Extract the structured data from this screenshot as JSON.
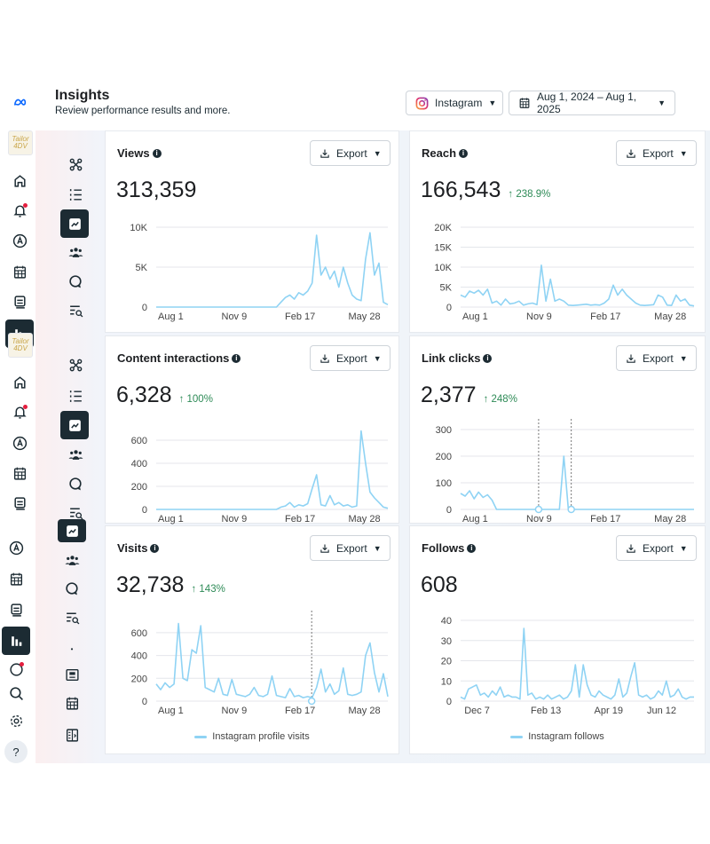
{
  "header": {
    "title": "Insights",
    "subtitle": "Review performance results and more.",
    "platform": "Instagram",
    "date_range": "Aug 1, 2024 – Aug 1, 2025"
  },
  "avatar_text": "Tailor 4DV",
  "help_label": "?",
  "export_label": "Export",
  "colors": {
    "series": "#8fd3f4",
    "accent": "#1c2b33",
    "positive": "#2e8b57",
    "notification": "#e41e3f"
  },
  "cards": [
    {
      "title": "Views",
      "value": "313,359",
      "change": ""
    },
    {
      "title": "Reach",
      "value": "166,543",
      "change": "↑ 238.9%"
    },
    {
      "title": "Content interactions",
      "value": "6,328",
      "change": "↑ 100%"
    },
    {
      "title": "Link clicks",
      "value": "2,377",
      "change": "↑ 248%"
    },
    {
      "title": "Visits",
      "value": "32,738",
      "change": "↑ 143%",
      "legend": "Instagram profile visits"
    },
    {
      "title": "Follows",
      "value": "608",
      "change": "",
      "legend": "Instagram follows"
    }
  ],
  "chart_data": [
    {
      "type": "line",
      "x_start": "2024-08-01",
      "x_end": "2025-08-01",
      "ylim": [
        0,
        10000
      ],
      "yticks": [
        0,
        5000,
        10000
      ],
      "ytick_labels": [
        "0",
        "5K",
        "10K"
      ],
      "xticks": [
        "2024-08-01",
        "2024-11-09",
        "2025-02-17",
        "2025-05-28"
      ],
      "xtick_labels": [
        "Aug 1",
        "Nov 9",
        "Feb 17",
        "May 28"
      ],
      "grid": true,
      "values": [
        0,
        0,
        0,
        0,
        0,
        0,
        0,
        0,
        0,
        0,
        0,
        0,
        0,
        0,
        0,
        0,
        0,
        0,
        0,
        0,
        0,
        0,
        0,
        0,
        0,
        0,
        0,
        0,
        600,
        1200,
        1500,
        1000,
        1800,
        1500,
        2000,
        3000,
        9000,
        4000,
        5000,
        3500,
        4500,
        2500,
        5000,
        3000,
        1500,
        1000,
        800,
        6000,
        9300,
        4000,
        5500,
        600,
        300
      ]
    },
    {
      "type": "line",
      "x_start": "2024-08-01",
      "x_end": "2025-08-01",
      "ylim": [
        0,
        20000
      ],
      "yticks": [
        0,
        5000,
        10000,
        15000,
        20000
      ],
      "ytick_labels": [
        "0",
        "5K",
        "10K",
        "15K",
        "20K"
      ],
      "xticks": [
        "2024-08-01",
        "2024-11-09",
        "2025-02-17",
        "2025-05-28"
      ],
      "xtick_labels": [
        "Aug 1",
        "Nov 9",
        "Feb 17",
        "May 28"
      ],
      "grid": true,
      "values": [
        3000,
        2500,
        4000,
        3500,
        4200,
        3000,
        4500,
        1000,
        1500,
        500,
        2000,
        800,
        1000,
        1500,
        500,
        800,
        1000,
        600,
        10500,
        1500,
        7000,
        1500,
        2000,
        1500,
        500,
        400,
        500,
        600,
        700,
        500,
        600,
        500,
        1000,
        2000,
        5500,
        3000,
        4500,
        3000,
        2000,
        1000,
        500,
        400,
        500,
        600,
        3000,
        2500,
        500,
        400,
        3000,
        1500,
        2000,
        500,
        300
      ]
    },
    {
      "type": "line",
      "x_start": "2024-08-01",
      "x_end": "2025-08-01",
      "ylim": [
        0,
        700
      ],
      "yticks": [
        0,
        200,
        400,
        600
      ],
      "ytick_labels": [
        "0",
        "200",
        "400",
        "600"
      ],
      "xticks": [
        "2024-08-01",
        "2024-11-09",
        "2025-02-17",
        "2025-05-28"
      ],
      "xtick_labels": [
        "Aug 1",
        "Nov 9",
        "Feb 17",
        "May 28"
      ],
      "grid": true,
      "values": [
        0,
        0,
        0,
        0,
        0,
        0,
        0,
        0,
        0,
        0,
        0,
        0,
        0,
        0,
        0,
        0,
        0,
        0,
        0,
        0,
        0,
        0,
        0,
        0,
        0,
        0,
        0,
        0,
        20,
        30,
        60,
        20,
        40,
        30,
        50,
        180,
        300,
        40,
        30,
        120,
        40,
        60,
        30,
        40,
        20,
        30,
        680,
        400,
        150,
        100,
        60,
        20,
        10
      ]
    },
    {
      "type": "line",
      "x_start": "2024-08-01",
      "x_end": "2025-08-01",
      "ylim": [
        0,
        300
      ],
      "yticks": [
        0,
        100,
        200,
        300
      ],
      "ytick_labels": [
        "0",
        "100",
        "200",
        "300"
      ],
      "xticks": [
        "2024-08-01",
        "2024-11-09",
        "2025-02-17",
        "2025-05-28"
      ],
      "xtick_labels": [
        "Aug 1",
        "Nov 9",
        "Feb 17",
        "May 28"
      ],
      "grid": true,
      "markers": [
        "2024-12-01",
        "2025-01-21"
      ],
      "values": [
        60,
        50,
        70,
        40,
        65,
        45,
        55,
        35,
        0,
        0,
        0,
        0,
        0,
        0,
        0,
        0,
        0,
        0,
        0,
        0,
        0,
        0,
        0,
        200,
        0,
        0,
        0,
        0,
        0,
        0,
        0,
        0,
        0,
        0,
        0,
        0,
        0,
        0,
        0,
        0,
        0,
        0,
        0,
        0,
        0,
        0,
        0,
        0,
        0,
        0,
        0,
        0,
        0
      ]
    },
    {
      "type": "line",
      "x_start": "2024-08-01",
      "x_end": "2025-08-01",
      "ylim": [
        0,
        700
      ],
      "yticks": [
        0,
        200,
        400,
        600
      ],
      "ytick_labels": [
        "0",
        "200",
        "400",
        "600"
      ],
      "xticks": [
        "2024-08-01",
        "2024-11-09",
        "2025-02-17",
        "2025-05-28"
      ],
      "xtick_labels": [
        "Aug 1",
        "Nov 9",
        "Feb 17",
        "May 28"
      ],
      "grid": true,
      "markers": [
        "2025-04-03"
      ],
      "legend_position": "bottom",
      "series": [
        {
          "name": "Instagram profile visits",
          "values": [
            150,
            100,
            160,
            120,
            150,
            680,
            200,
            180,
            450,
            420,
            660,
            120,
            100,
            80,
            200,
            60,
            50,
            190,
            60,
            50,
            40,
            60,
            120,
            50,
            40,
            60,
            220,
            50,
            40,
            30,
            110,
            40,
            50,
            30,
            40,
            30,
            120,
            280,
            80,
            150,
            60,
            90,
            290,
            60,
            50,
            60,
            80,
            400,
            510,
            250,
            80,
            240,
            40
          ]
        }
      ]
    },
    {
      "type": "line",
      "x_start": "2024-12-05",
      "x_end": "2025-08-01",
      "ylim": [
        0,
        40
      ],
      "yticks": [
        0,
        10,
        20,
        30,
        40
      ],
      "ytick_labels": [
        "0",
        "10",
        "20",
        "30",
        "40"
      ],
      "xticks": [
        "2024-12-07",
        "2025-02-13",
        "2025-04-19",
        "2025-06-12"
      ],
      "xtick_labels": [
        "Dec 7",
        "Feb 13",
        "Apr 19",
        "Jun 12"
      ],
      "grid": true,
      "legend_position": "bottom",
      "series": [
        {
          "name": "Instagram follows",
          "values": [
            2,
            1,
            6,
            7,
            8,
            3,
            4,
            2,
            5,
            3,
            7,
            2,
            3,
            2,
            2,
            1,
            36,
            3,
            4,
            1,
            2,
            1,
            3,
            1,
            2,
            3,
            1,
            2,
            5,
            18,
            2,
            18,
            8,
            3,
            2,
            5,
            3,
            2,
            1,
            3,
            11,
            2,
            4,
            12,
            19,
            3,
            2,
            3,
            1,
            2,
            5,
            3,
            10,
            2,
            3,
            6,
            2,
            1,
            2,
            2
          ]
        }
      ]
    }
  ]
}
